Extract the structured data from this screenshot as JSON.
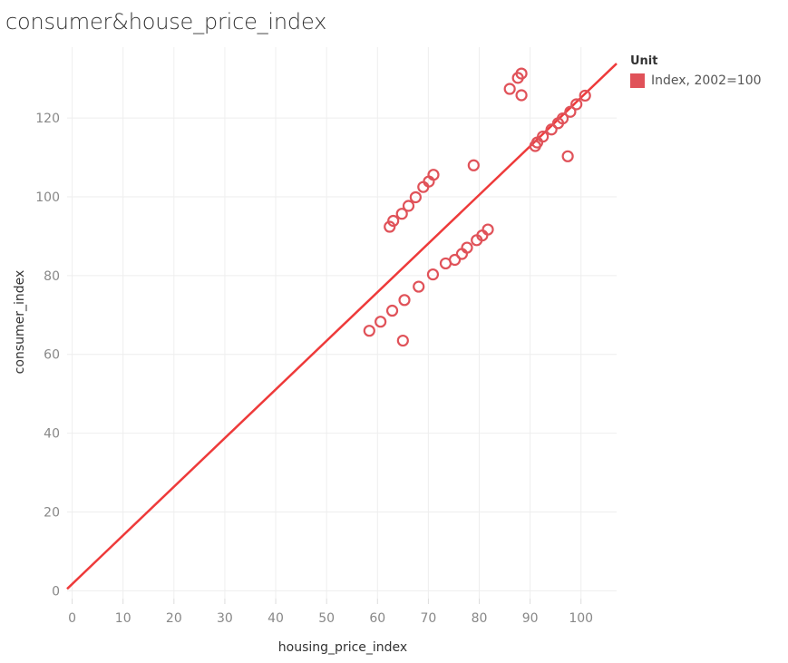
{
  "chart_data": {
    "type": "scatter",
    "title": "consumer&house_price_index",
    "xlabel": "housing_price_index",
    "ylabel": "consumer_index",
    "xlim": [
      -1,
      107
    ],
    "ylim": [
      -2,
      138
    ],
    "x_ticks": [
      0,
      10,
      20,
      30,
      40,
      50,
      60,
      70,
      80,
      90,
      100
    ],
    "y_ticks": [
      0,
      20,
      40,
      60,
      80,
      100,
      120
    ],
    "grid": true,
    "legend": {
      "title": "Unit",
      "placement": "right",
      "entries": [
        {
          "label": "Index, 2002=100",
          "color": "#e05259"
        }
      ]
    },
    "trend_line": {
      "color": "#ee3a3a",
      "intercept": 1.7,
      "slope": 1.235
    },
    "series": [
      {
        "color": "#e05259",
        "points": [
          [
            58.4,
            66.0
          ],
          [
            60.6,
            68.3
          ],
          [
            62.9,
            71.1
          ],
          [
            65.3,
            73.8
          ],
          [
            68.1,
            77.2
          ],
          [
            70.9,
            80.3
          ],
          [
            73.4,
            83.1
          ],
          [
            75.2,
            84.0
          ],
          [
            76.6,
            85.5
          ],
          [
            77.6,
            87.1
          ],
          [
            79.5,
            89.0
          ],
          [
            80.6,
            90.2
          ],
          [
            81.7,
            91.7
          ],
          [
            65.0,
            63.5
          ],
          [
            62.4,
            92.4
          ],
          [
            63.1,
            93.9
          ],
          [
            64.8,
            95.7
          ],
          [
            66.1,
            97.7
          ],
          [
            67.5,
            99.9
          ],
          [
            69.0,
            102.5
          ],
          [
            70.1,
            103.9
          ],
          [
            71.0,
            105.6
          ],
          [
            78.9,
            108.0
          ],
          [
            86.0,
            127.4
          ],
          [
            87.6,
            130.2
          ],
          [
            88.3,
            131.3
          ],
          [
            88.3,
            125.8
          ],
          [
            91.0,
            112.9
          ],
          [
            91.4,
            113.8
          ],
          [
            92.5,
            115.3
          ],
          [
            94.2,
            117.1
          ],
          [
            95.5,
            118.7
          ],
          [
            96.4,
            119.9
          ],
          [
            97.4,
            110.3
          ],
          [
            97.9,
            121.6
          ],
          [
            99.1,
            123.5
          ],
          [
            100.8,
            125.7
          ]
        ]
      }
    ]
  }
}
